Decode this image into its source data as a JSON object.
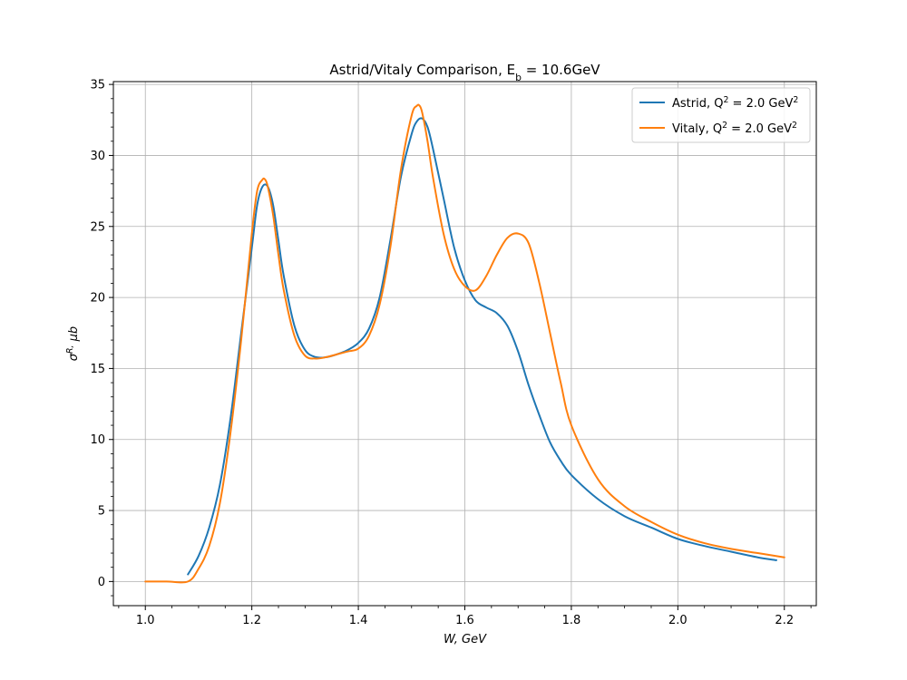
{
  "chart_data": {
    "type": "line",
    "title": "Astrid/Vitaly Comparison, E_b = 10.6GeV",
    "xlabel": "W, GeV",
    "ylabel": "σ^R, μb",
    "xlim": [
      0.94,
      2.26
    ],
    "ylim": [
      -1.7,
      35.2
    ],
    "xticks": [
      "1.0",
      "1.2",
      "1.4",
      "1.6",
      "1.8",
      "2.0",
      "2.2"
    ],
    "yticks": [
      "0",
      "5",
      "10",
      "15",
      "20",
      "25",
      "30",
      "35"
    ],
    "grid": true,
    "legend_position": "top-right",
    "series": [
      {
        "name": "Astrid, Q^2 = 2.0 GeV^2",
        "color": "#1f77b4",
        "x": [
          1.08,
          1.1,
          1.12,
          1.14,
          1.16,
          1.18,
          1.2,
          1.21,
          1.22,
          1.23,
          1.24,
          1.25,
          1.26,
          1.28,
          1.3,
          1.32,
          1.34,
          1.36,
          1.38,
          1.4,
          1.42,
          1.44,
          1.46,
          1.48,
          1.5,
          1.51,
          1.52,
          1.53,
          1.54,
          1.56,
          1.58,
          1.6,
          1.62,
          1.64,
          1.66,
          1.68,
          1.7,
          1.72,
          1.74,
          1.76,
          1.78,
          1.8,
          1.85,
          1.9,
          1.95,
          2.0,
          2.05,
          2.1,
          2.15,
          2.185
        ],
        "y": [
          0.5,
          1.8,
          3.8,
          6.8,
          11.5,
          17.5,
          23.5,
          26.5,
          27.8,
          27.8,
          26.5,
          24.0,
          21.5,
          18.0,
          16.3,
          15.8,
          15.8,
          16.0,
          16.3,
          16.8,
          17.8,
          20.0,
          24.0,
          28.5,
          31.5,
          32.4,
          32.6,
          32.0,
          30.5,
          27.0,
          23.5,
          21.2,
          19.8,
          19.3,
          18.9,
          18.0,
          16.2,
          13.8,
          11.7,
          9.8,
          8.5,
          7.5,
          5.8,
          4.6,
          3.8,
          3.0,
          2.5,
          2.1,
          1.7,
          1.5
        ]
      },
      {
        "name": "Vitaly, Q^2 = 2.0 GeV^2",
        "color": "#ff7f0e",
        "x": [
          1.0,
          1.04,
          1.08,
          1.1,
          1.12,
          1.14,
          1.16,
          1.18,
          1.2,
          1.21,
          1.22,
          1.225,
          1.23,
          1.24,
          1.25,
          1.26,
          1.28,
          1.3,
          1.32,
          1.34,
          1.36,
          1.38,
          1.4,
          1.42,
          1.44,
          1.46,
          1.48,
          1.5,
          1.51,
          1.515,
          1.52,
          1.53,
          1.54,
          1.56,
          1.58,
          1.6,
          1.62,
          1.64,
          1.66,
          1.68,
          1.7,
          1.72,
          1.74,
          1.76,
          1.78,
          1.8,
          1.85,
          1.9,
          1.95,
          2.0,
          2.05,
          2.1,
          2.15,
          2.2
        ],
        "y": [
          0.0,
          0.0,
          0.0,
          0.9,
          2.5,
          5.5,
          10.5,
          17.0,
          24.5,
          27.5,
          28.3,
          28.3,
          27.8,
          25.8,
          23.0,
          20.5,
          17.3,
          15.9,
          15.7,
          15.8,
          16.0,
          16.2,
          16.4,
          17.3,
          19.5,
          23.5,
          29.0,
          32.8,
          33.5,
          33.5,
          33.0,
          31.0,
          28.5,
          24.5,
          22.0,
          20.8,
          20.5,
          21.5,
          23.0,
          24.2,
          24.5,
          23.8,
          21.0,
          17.5,
          14.0,
          11.0,
          7.2,
          5.3,
          4.2,
          3.3,
          2.7,
          2.3,
          2.0,
          1.7
        ]
      }
    ]
  }
}
